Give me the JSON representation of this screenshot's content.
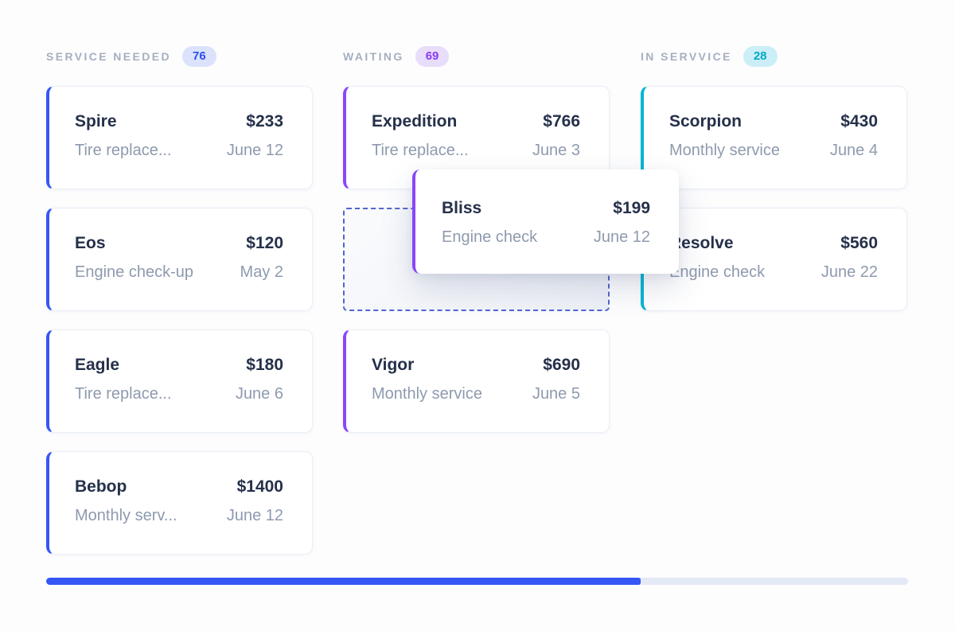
{
  "theme": {
    "accent_blue": "#3457f5",
    "accent_purple": "#8a46fb",
    "accent_teal": "#00b6d3",
    "badge_blue_bg": "#dbe2fb",
    "badge_blue_text": "#2b50ee",
    "badge_purple_bg": "#e8ddfb",
    "badge_purple_text": "#8a3bf2",
    "badge_teal_bg": "#cceef6",
    "badge_teal_text": "#00a9c6",
    "progress_track": "#e4e9f6"
  },
  "board": {
    "columns": [
      {
        "title": "SERVICE NEEDED",
        "count": "76",
        "cards": [
          {
            "name": "Spire",
            "price": "$233",
            "service": "Tire replace...",
            "date": "June 12"
          },
          {
            "name": "Eos",
            "price": "$120",
            "service": "Engine check-up",
            "date": "May 2"
          },
          {
            "name": "Eagle",
            "price": "$180",
            "service": "Tire replace...",
            "date": "June 6"
          },
          {
            "name": "Bebop",
            "price": "$1400",
            "service": "Monthly serv...",
            "date": "June 12"
          }
        ]
      },
      {
        "title": "WAITING",
        "count": "69",
        "cards": [
          {
            "name": "Expedition",
            "price": "$766",
            "service": "Tire replace...",
            "date": "June 3"
          },
          {
            "name": "Vigor",
            "price": "$690",
            "service": "Monthly service",
            "date": "June 5"
          }
        ],
        "has_drop_placeholder_between": true
      },
      {
        "title": "IN SERVVICE",
        "count": "28",
        "cards": [
          {
            "name": "Scorpion",
            "price": "$430",
            "service": "Monthly service",
            "date": "June 4"
          },
          {
            "name": "Resolve",
            "price": "$560",
            "service": "Engine check",
            "date": "June 22"
          }
        ]
      }
    ]
  },
  "drag_card": {
    "name": "Bliss",
    "price": "$199",
    "service": "Engine check",
    "date": "June 12"
  },
  "progress": {
    "percent": 69
  }
}
